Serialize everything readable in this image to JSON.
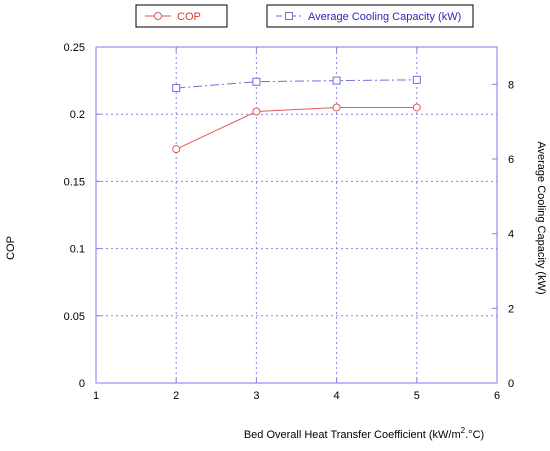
{
  "chart_data": {
    "type": "line",
    "x": [
      2,
      3,
      4,
      5
    ],
    "xlabel": "Bed Overall Heat Transfer Coefficient (kW/m",
    "xlabel_sup": "2",
    "xlabel_end": ".°C)",
    "xlim": [
      1,
      6
    ],
    "xticks": [
      "1",
      "2",
      "3",
      "4",
      "5",
      "6"
    ],
    "ylabel_left": "COP",
    "ylim_left": [
      0,
      0.25
    ],
    "yticks_left": [
      "0",
      "0.05",
      "0.1",
      "0.15",
      "0.2",
      "0.25"
    ],
    "ylabel_right": "Average Cooling Capacity (kW)",
    "ylim_right": [
      0,
      9
    ],
    "yticks_right": [
      "0",
      "2",
      "4",
      "6",
      "8"
    ],
    "grid": true,
    "legend_placement": "top",
    "series": [
      {
        "name": "COP",
        "axis": "left",
        "color": "#e05a5a",
        "marker": "circle",
        "line": "solid",
        "values": [
          0.174,
          0.202,
          0.205,
          0.205
        ]
      },
      {
        "name": "Average Cooling Capacity (kW)",
        "axis": "right",
        "color": "#6f6fe0",
        "marker": "square",
        "line": "dashdot",
        "values": [
          7.9,
          8.07,
          8.1,
          8.12
        ]
      }
    ]
  }
}
